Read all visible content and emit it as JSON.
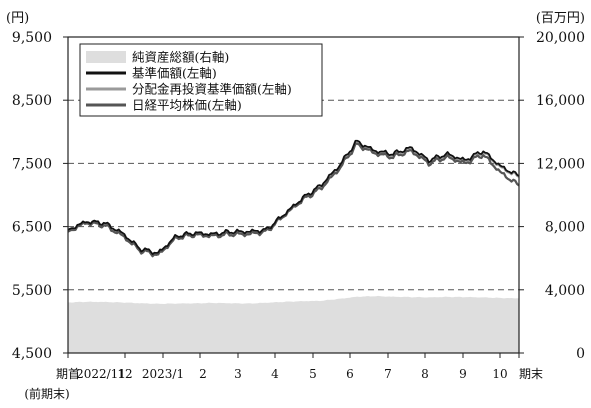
{
  "chart_data": {
    "type": "line",
    "left_unit": "(円)",
    "right_unit": "(百万円)",
    "left_axis": {
      "range": [
        4500,
        9500
      ],
      "ticks": [
        "4,500",
        "5,500",
        "6,500",
        "7,500",
        "8,500",
        "9,500"
      ],
      "tick_values": [
        4500,
        5500,
        6500,
        7500,
        8500,
        9500
      ]
    },
    "right_axis": {
      "range": [
        0,
        20000
      ],
      "ticks": [
        "0",
        "4,000",
        "8,000",
        "12,000",
        "16,000",
        "20,000"
      ],
      "tick_values": [
        0,
        4000,
        8000,
        12000,
        16000,
        20000
      ]
    },
    "x_labels": [
      "期首",
      "2022/11",
      "12",
      "2023/1",
      "2",
      "3",
      "4",
      "5",
      "6",
      "7",
      "8",
      "9",
      "10",
      "期末"
    ],
    "x_sublabel": "(前期末)",
    "grid": "dashed horizontal",
    "legend_position": "top-left",
    "x": [
      "2022/10",
      "2022/11",
      "2022/11",
      "2022/12",
      "2022/12",
      "2022/12",
      "2023/1",
      "2023/1",
      "2023/2",
      "2023/2",
      "2023/3",
      "2023/3",
      "2023/4",
      "2023/4",
      "2023/5",
      "2023/5",
      "2023/6",
      "2023/6",
      "2023/7",
      "2023/7",
      "2023/8",
      "2023/8",
      "2023/9",
      "2023/9",
      "2023/10",
      "2023/10"
    ],
    "series": [
      {
        "name": "純資産総額(右軸)",
        "axis": "right",
        "style": "area",
        "color": "#dedede",
        "values": [
          3200,
          3240,
          3230,
          3200,
          3150,
          3110,
          3130,
          3140,
          3170,
          3150,
          3130,
          3180,
          3240,
          3280,
          3300,
          3420,
          3560,
          3600,
          3560,
          3540,
          3520,
          3550,
          3540,
          3520,
          3480,
          3460
        ]
      },
      {
        "name": "基準価額(左軸)",
        "axis": "left",
        "style": "line",
        "color": "#111111",
        "values": [
          6450,
          6580,
          6560,
          6400,
          6150,
          6080,
          6350,
          6400,
          6380,
          6420,
          6420,
          6450,
          6700,
          6950,
          7150,
          7450,
          7850,
          7700,
          7650,
          7750,
          7550,
          7650,
          7550,
          7700,
          7450,
          7300
        ]
      },
      {
        "name": "分配金再投資基準価額(左軸)",
        "axis": "left",
        "style": "line",
        "color": "#9a9a9a",
        "values": [
          6440,
          6570,
          6550,
          6390,
          6140,
          6070,
          6340,
          6390,
          6370,
          6410,
          6410,
          6440,
          6690,
          6940,
          7140,
          7440,
          7840,
          7690,
          7640,
          7740,
          7540,
          7640,
          7540,
          7690,
          7440,
          7290
        ]
      },
      {
        "name": "日経平均株価(左軸)",
        "axis": "left",
        "style": "line",
        "color": "#555555",
        "values": [
          6420,
          6560,
          6520,
          6360,
          6120,
          6050,
          6320,
          6370,
          6350,
          6380,
          6380,
          6420,
          6680,
          6920,
          7100,
          7400,
          7800,
          7660,
          7600,
          7700,
          7500,
          7600,
          7500,
          7640,
          7350,
          7150
        ]
      }
    ]
  }
}
